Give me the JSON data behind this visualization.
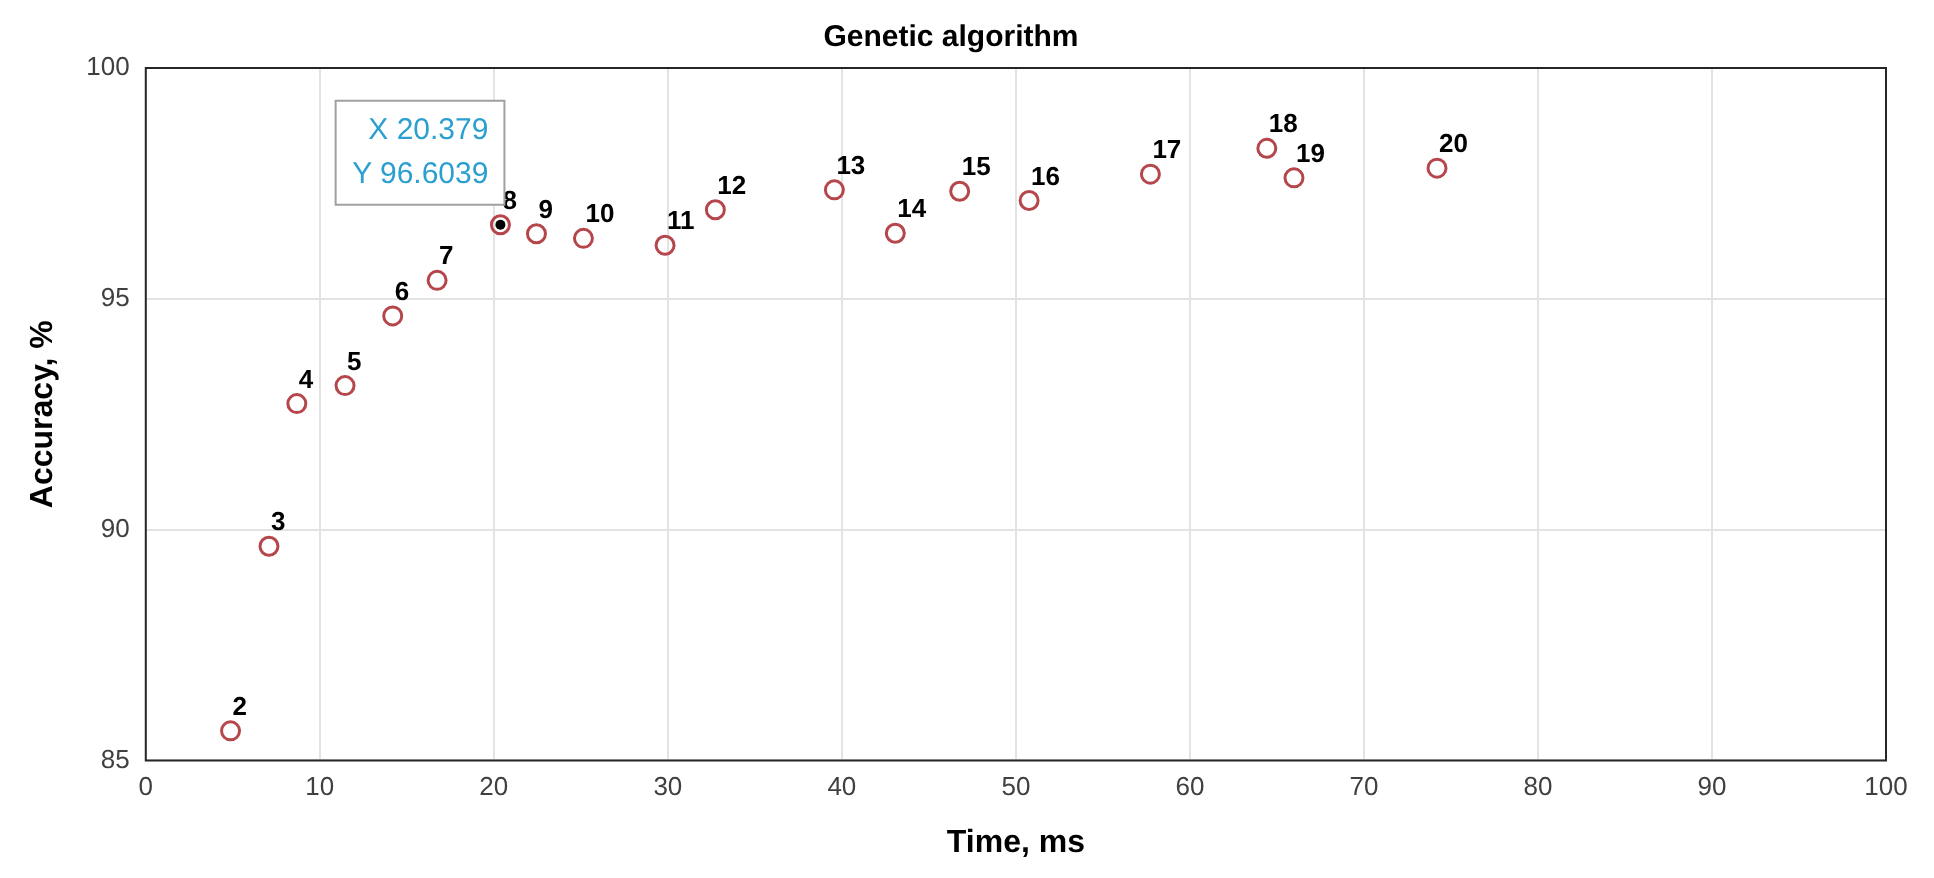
{
  "chart_data": {
    "type": "scatter",
    "title": "Genetic algorithm",
    "xlabel": "Time, ms",
    "ylabel": "Accuracy, %",
    "x": [
      4.87,
      7.08,
      8.68,
      11.45,
      14.19,
      16.74,
      20.379,
      22.45,
      25.15,
      29.84,
      32.73,
      39.57,
      43.07,
      46.77,
      50.76,
      57.73,
      64.42,
      65.98,
      74.2
    ],
    "values": [
      85.64,
      89.64,
      92.73,
      93.12,
      94.63,
      95.4,
      96.6039,
      96.41,
      96.31,
      96.16,
      96.93,
      97.36,
      96.42,
      97.33,
      97.13,
      97.7,
      98.26,
      97.62,
      97.83
    ],
    "color": "#b5464b",
    "marker": "circle",
    "grid": true,
    "legend": false,
    "xlim": [
      0,
      100
    ],
    "xticks": [
      0,
      10,
      20,
      30,
      40,
      50,
      60,
      70,
      80,
      90,
      100
    ],
    "ylim": [
      85,
      100
    ],
    "yticks": [
      85,
      90,
      95,
      100
    ],
    "annotations": [
      {
        "text": "2",
        "x": 4.87,
        "y": 85.64
      },
      {
        "text": "3",
        "x": 7.08,
        "y": 89.64
      },
      {
        "text": "4",
        "x": 8.68,
        "y": 92.73
      },
      {
        "text": "5",
        "x": 11.45,
        "y": 93.12
      },
      {
        "text": "6",
        "x": 14.19,
        "y": 94.63
      },
      {
        "text": "7",
        "x": 16.74,
        "y": 95.4
      },
      {
        "text": "8",
        "x": 20.379,
        "y": 96.6039
      },
      {
        "text": "9",
        "x": 22.45,
        "y": 96.41
      },
      {
        "text": "10",
        "x": 25.15,
        "y": 96.31
      },
      {
        "text": "11",
        "x": 29.84,
        "y": 96.16
      },
      {
        "text": "12",
        "x": 32.73,
        "y": 96.93
      },
      {
        "text": "13",
        "x": 39.57,
        "y": 97.36
      },
      {
        "text": "14",
        "x": 43.07,
        "y": 96.42
      },
      {
        "text": "15",
        "x": 46.77,
        "y": 97.33
      },
      {
        "text": "16",
        "x": 50.76,
        "y": 97.13
      },
      {
        "text": "17",
        "x": 57.73,
        "y": 97.7
      },
      {
        "text": "18",
        "x": 64.42,
        "y": 98.26
      },
      {
        "text": "19",
        "x": 65.98,
        "y": 97.62
      },
      {
        "text": "20",
        "x": 74.2,
        "y": 97.83
      },
      {
        "text": "X 20.379",
        "x": 20.379,
        "y": 96.6039
      },
      {
        "text": "Y 96.6039",
        "x": 20.379,
        "y": 96.6039
      }
    ]
  }
}
